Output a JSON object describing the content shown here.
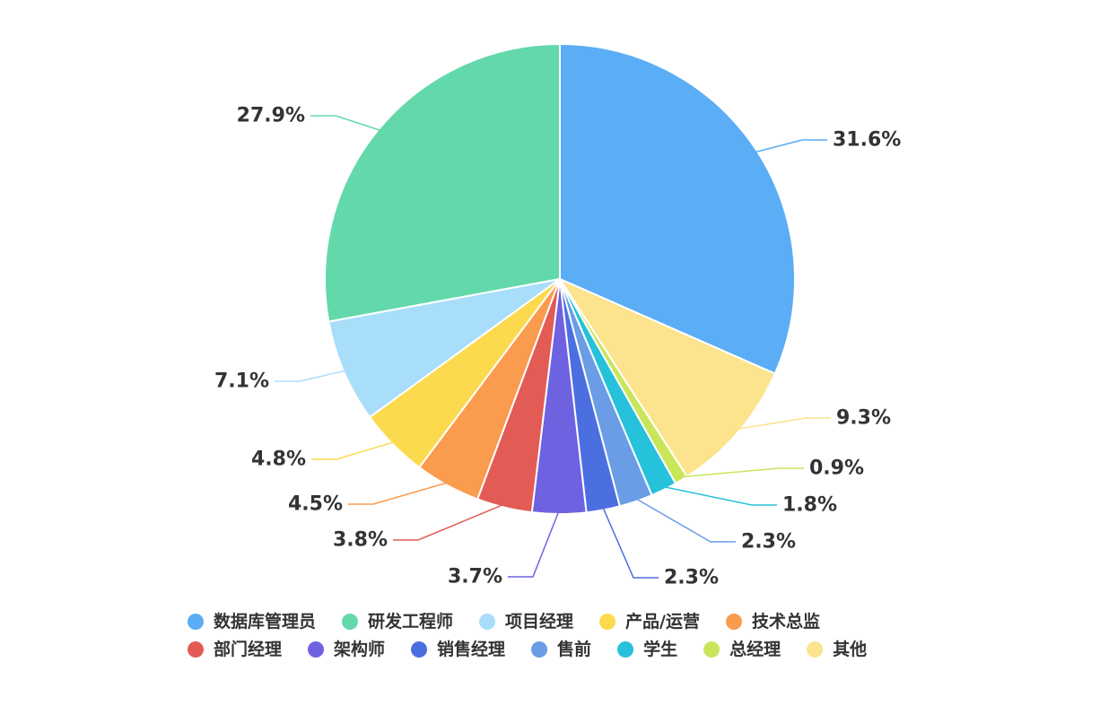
{
  "chart_data": {
    "type": "pie",
    "title": "",
    "slices": [
      {
        "name": "数据库管理员",
        "value": 31.6,
        "label": "31.6%",
        "color": "#5BAEF5"
      },
      {
        "name": "其他",
        "value": 9.3,
        "label": "9.3%",
        "color": "#FCE38D"
      },
      {
        "name": "总经理",
        "value": 0.9,
        "label": "0.9%",
        "color": "#C9E65A"
      },
      {
        "name": "学生",
        "value": 1.8,
        "label": "1.8%",
        "color": "#26C1DA"
      },
      {
        "name": "售前",
        "value": 2.3,
        "label": "2.3%",
        "color": "#6A9DE6"
      },
      {
        "name": "销售经理",
        "value": 2.3,
        "label": "2.3%",
        "color": "#4C6FE0"
      },
      {
        "name": "架构师",
        "value": 3.7,
        "label": "3.7%",
        "color": "#6F62E0"
      },
      {
        "name": "部门经理",
        "value": 3.8,
        "label": "3.8%",
        "color": "#E25C55"
      },
      {
        "name": "技术总监",
        "value": 4.5,
        "label": "4.5%",
        "color": "#FB9B4E"
      },
      {
        "name": "产品/运营",
        "value": 4.8,
        "label": "4.8%",
        "color": "#FCDA4E"
      },
      {
        "name": "项目经理",
        "value": 7.1,
        "label": "7.1%",
        "color": "#A9DEFA"
      },
      {
        "name": "研发工程师",
        "value": 27.9,
        "label": "27.9%",
        "color": "#63D9AB"
      }
    ],
    "legend": {
      "placement": "bottom",
      "rows": [
        [
          "数据库管理员",
          "研发工程师",
          "项目经理",
          "产品/运营",
          "技术总监"
        ],
        [
          "部门经理",
          "架构师",
          "销售经理",
          "售前",
          "学生",
          "总经理",
          "其他"
        ]
      ]
    }
  }
}
